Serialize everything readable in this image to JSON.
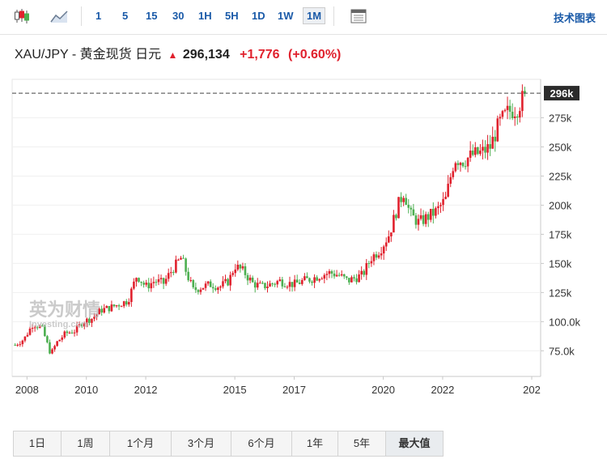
{
  "toolbar": {
    "intervals": [
      {
        "label": "1",
        "active": false
      },
      {
        "label": "5",
        "active": false
      },
      {
        "label": "15",
        "active": false
      },
      {
        "label": "30",
        "active": false
      },
      {
        "label": "1H",
        "active": false
      },
      {
        "label": "5H",
        "active": false
      },
      {
        "label": "1D",
        "active": false
      },
      {
        "label": "1W",
        "active": false
      },
      {
        "label": "1M",
        "active": true
      }
    ],
    "icons": [
      "candlestick-icon",
      "area-chart-icon",
      "table-icon"
    ],
    "tech_chart_label": "技术图表"
  },
  "header": {
    "title": "XAU/JPY - 黄金现货 日元",
    "price": "296,134",
    "change": "+1,776",
    "change_pct": "(+0.60%)",
    "direction": "up"
  },
  "watermark": {
    "brand": "英为财情",
    "site": "Investing.com"
  },
  "colors": {
    "up": "#e0212d",
    "down": "#4caf50",
    "accent": "#1a5aa8",
    "last_price_bg": "#2b2b2b"
  },
  "chart_data": {
    "type": "candlestick",
    "instrument": "XAU/JPY",
    "interval": "1M",
    "x_tick_labels": [
      "2008",
      "2010",
      "2012",
      "2015",
      "2017",
      "2020",
      "2022",
      "202"
    ],
    "y_tick_labels": [
      "75.0k",
      "100.0k",
      "125k",
      "150k",
      "175k",
      "200k",
      "225k",
      "250k",
      "275k",
      "296k"
    ],
    "y_ticks": [
      75000,
      100000,
      125000,
      150000,
      175000,
      200000,
      225000,
      250000,
      275000
    ],
    "ylim": [
      53000,
      308000
    ],
    "xlim": [
      2007.5,
      2025.3
    ],
    "last_price": 296134,
    "last_price_label": "296k",
    "series": [
      {
        "name": "XAU/JPY",
        "points": [
          [
            2007.6,
            80000
          ],
          [
            2007.9,
            85000
          ],
          [
            2008.2,
            98000
          ],
          [
            2008.5,
            95000
          ],
          [
            2008.8,
            72000
          ],
          [
            2009.0,
            82000
          ],
          [
            2009.3,
            90000
          ],
          [
            2009.6,
            92000
          ],
          [
            2009.9,
            100000
          ],
          [
            2010.2,
            103000
          ],
          [
            2010.5,
            110000
          ],
          [
            2010.8,
            112000
          ],
          [
            2011.1,
            115000
          ],
          [
            2011.4,
            118000
          ],
          [
            2011.7,
            140000
          ],
          [
            2012.0,
            130000
          ],
          [
            2012.3,
            135000
          ],
          [
            2012.6,
            133000
          ],
          [
            2012.9,
            145000
          ],
          [
            2013.2,
            155000
          ],
          [
            2013.4,
            140000
          ],
          [
            2013.6,
            127000
          ],
          [
            2013.9,
            130000
          ],
          [
            2014.2,
            132000
          ],
          [
            2014.5,
            130000
          ],
          [
            2014.8,
            135000
          ],
          [
            2015.0,
            148000
          ],
          [
            2015.3,
            143000
          ],
          [
            2015.6,
            133000
          ],
          [
            2015.9,
            130000
          ],
          [
            2016.2,
            132000
          ],
          [
            2016.5,
            135000
          ],
          [
            2016.8,
            133000
          ],
          [
            2017.0,
            132000
          ],
          [
            2017.3,
            135000
          ],
          [
            2017.6,
            137000
          ],
          [
            2017.9,
            140000
          ],
          [
            2018.2,
            142000
          ],
          [
            2018.5,
            140000
          ],
          [
            2018.8,
            135000
          ],
          [
            2019.0,
            137000
          ],
          [
            2019.3,
            140000
          ],
          [
            2019.6,
            155000
          ],
          [
            2019.9,
            162000
          ],
          [
            2020.2,
            175000
          ],
          [
            2020.5,
            200000
          ],
          [
            2020.7,
            212000
          ],
          [
            2020.9,
            192000
          ],
          [
            2021.2,
            185000
          ],
          [
            2021.5,
            190000
          ],
          [
            2021.8,
            195000
          ],
          [
            2022.1,
            205000
          ],
          [
            2022.4,
            240000
          ],
          [
            2022.7,
            238000
          ],
          [
            2023.0,
            243000
          ],
          [
            2023.3,
            245000
          ],
          [
            2023.6,
            250000
          ],
          [
            2023.9,
            270000
          ],
          [
            2024.2,
            280000
          ],
          [
            2024.5,
            283000
          ],
          [
            2024.8,
            296134
          ]
        ]
      }
    ]
  },
  "range_buttons": [
    {
      "label": "1日",
      "active": false
    },
    {
      "label": "1周",
      "active": false
    },
    {
      "label": "1个月",
      "active": false
    },
    {
      "label": "3个月",
      "active": false
    },
    {
      "label": "6个月",
      "active": false
    },
    {
      "label": "1年",
      "active": false
    },
    {
      "label": "5年",
      "active": false
    },
    {
      "label": "最大值",
      "active": true
    }
  ]
}
